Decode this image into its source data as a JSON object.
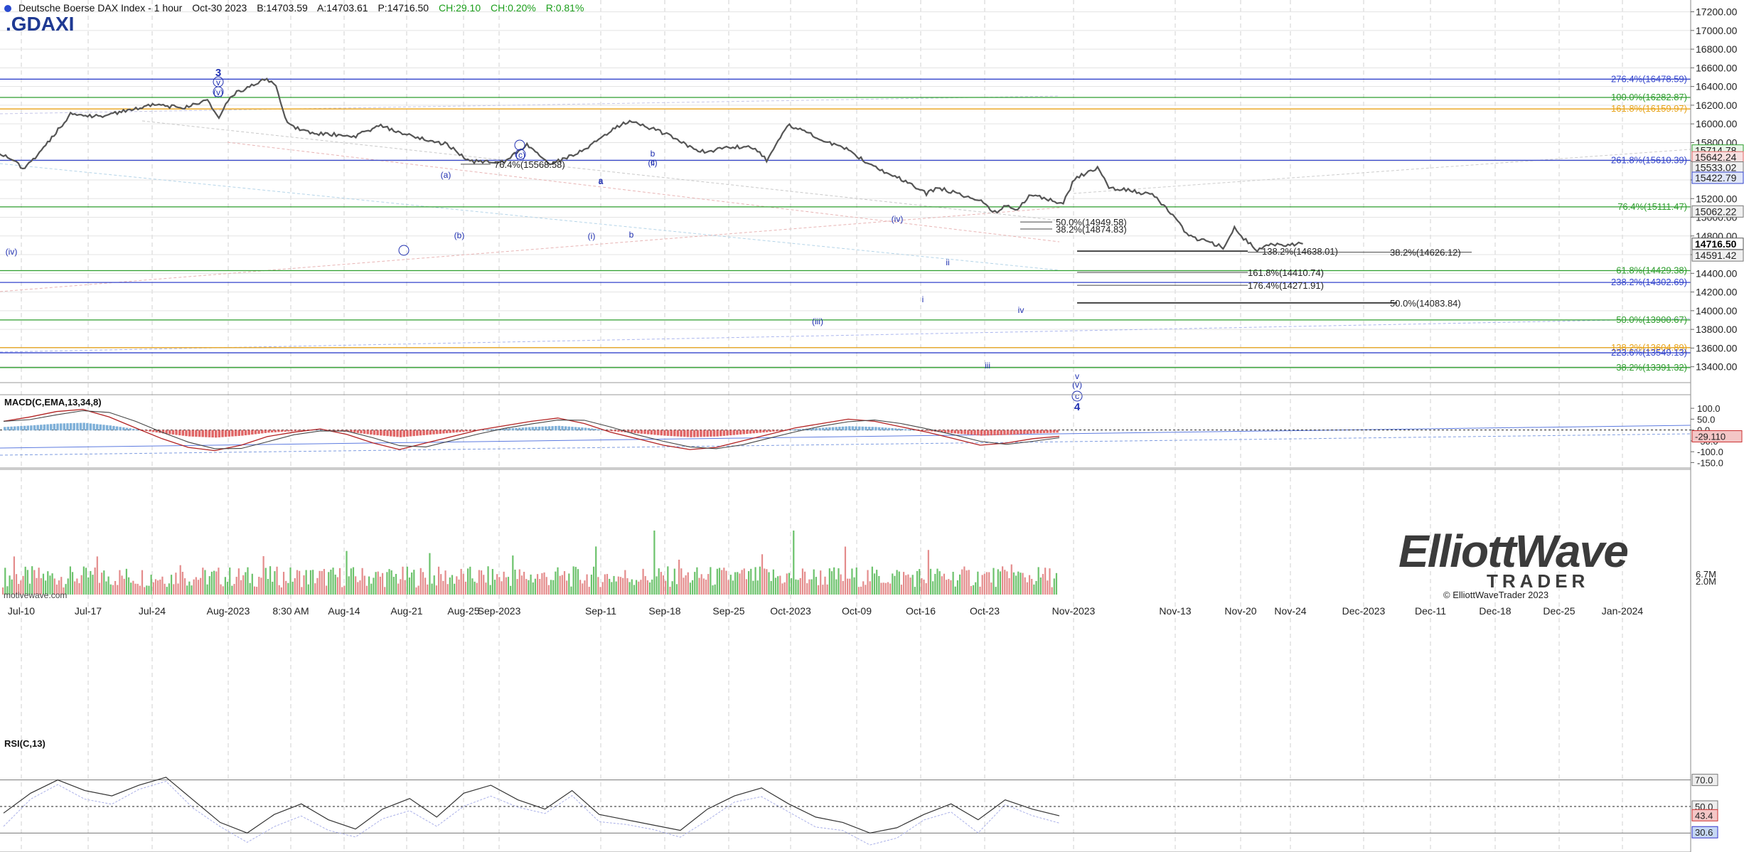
{
  "header": {
    "title": "Deutsche Boerse DAX Index - 1 hour",
    "date": "Oct-30 2023",
    "bid": "B:14703.59",
    "ask": "A:14703.61",
    "last": "P:14716.50",
    "change": "CH:29.10",
    "change_pct": "CH:0.20%",
    "range": "R:0.81%"
  },
  "ticker": ".GDAXI",
  "watermark": "motivewave.com",
  "logo": {
    "line1": "ElliottWave",
    "line2": "TRADER"
  },
  "copyright": "© ElliottWaveTrader 2023",
  "colors": {
    "price": "#555555",
    "blue_level": "#3344cc",
    "green_level": "#2e9e2e",
    "orange_level": "#e8a317",
    "volume_up": "#6cc26c",
    "volume_down": "#e48c8c",
    "macd_line": "#b22222",
    "macd_signal": "#444444",
    "macd_hist_up": "#7fb0d8",
    "macd_hist_down": "#e06666",
    "rsi_line": "#333333"
  },
  "chart_data": [
    {
      "type": "line",
      "panel": "price",
      "x_tick_labels": [
        "Jul-10",
        "Jul-17",
        "Jul-24",
        "Aug-2023",
        "8:30 AM",
        "Aug-14",
        "Aug-21",
        "Aug-25",
        "Sep-2023",
        "Sep-11",
        "Sep-18",
        "Sep-25",
        "Oct-2023",
        "Oct-09",
        "Oct-16",
        "Oct-23",
        "Nov-2023",
        "Nov-13",
        "Nov-20",
        "Nov-24",
        "Dec-2023",
        "Dec-11",
        "Dec-18",
        "Dec-25",
        "Jan-2024"
      ],
      "y_ticks": [
        13400,
        13600,
        13800,
        14000,
        14200,
        14400,
        14600,
        14800,
        15000,
        15200,
        15400,
        15600,
        15800,
        16000,
        16200,
        16400,
        16600,
        16800,
        17000,
        17200
      ],
      "ylim": [
        13230,
        17250
      ],
      "series": [
        {
          "name": "",
          "points": [
            [
              "Jul-07",
              15750
            ],
            [
              "Jul-10",
              15520
            ],
            [
              "Jul-12",
              15800
            ],
            [
              "Jul-14",
              16100
            ],
            [
              "Jul-17",
              16080
            ],
            [
              "Jul-19",
              16150
            ],
            [
              "Jul-21",
              16200
            ],
            [
              "Jul-24",
              16180
            ],
            [
              "Jul-26",
              16250
            ],
            [
              "Jul-27",
              16050
            ],
            [
              "Jul-28",
              16300
            ],
            [
              "Jul-31",
              16478
            ],
            [
              "Aug-01",
              16420
            ],
            [
              "Aug-02",
              16000
            ],
            [
              "Aug-04",
              15900
            ],
            [
              "Aug-08",
              15870
            ],
            [
              "Aug-10",
              15980
            ],
            [
              "Aug-14",
              15840
            ],
            [
              "Aug-16",
              15780
            ],
            [
              "Aug-18",
              15600
            ],
            [
              "Aug-21",
              15590
            ],
            [
              "Aug-23",
              15780
            ],
            [
              "Aug-25",
              15560
            ],
            [
              "Aug-28",
              15720
            ],
            [
              "Aug-30",
              15900
            ],
            [
              "Sep-01",
              16040
            ],
            [
              "Sep-05",
              15850
            ],
            [
              "Sep-07",
              15700
            ],
            [
              "Sep-11",
              15760
            ],
            [
              "Sep-12",
              15740
            ],
            [
              "Sep-13",
              15610
            ],
            [
              "Sep-14",
              15820
            ],
            [
              "Sep-15",
              15990
            ],
            [
              "Sep-18",
              15820
            ],
            [
              "Sep-20",
              15740
            ],
            [
              "Sep-22",
              15560
            ],
            [
              "Sep-25",
              15400
            ],
            [
              "Sep-27",
              15250
            ],
            [
              "Sep-28",
              15320
            ],
            [
              "Oct-02",
              15160
            ],
            [
              "Oct-03",
              15050
            ],
            [
              "Oct-04",
              15120
            ],
            [
              "Oct-05",
              15080
            ],
            [
              "Oct-06",
              15240
            ],
            [
              "Oct-09",
              15150
            ],
            [
              "Oct-10",
              15420
            ],
            [
              "Oct-11",
              15470
            ],
            [
              "Oct-12",
              15520
            ],
            [
              "Oct-13",
              15320
            ],
            [
              "Oct-16",
              15260
            ],
            [
              "Oct-17",
              15230
            ],
            [
              "Oct-18",
              15100
            ],
            [
              "Oct-19",
              14960
            ],
            [
              "Oct-20",
              14800
            ],
            [
              "Oct-23",
              14680
            ],
            [
              "Oct-24",
              14880
            ],
            [
              "Oct-25",
              14750
            ],
            [
              "Oct-26",
              14650
            ],
            [
              "Oct-27",
              14700
            ],
            [
              "Oct-30",
              14716
            ]
          ]
        }
      ],
      "horizontal_levels": [
        {
          "label": "276.4%(16478.59)",
          "value": 16478.59,
          "color": "blue"
        },
        {
          "label": "100.0%(16282.87)",
          "value": 16282.87,
          "color": "green"
        },
        {
          "label": "161.8%(16159.97)",
          "value": 16159.97,
          "color": "orange"
        },
        {
          "label": "261.8%(15610.39)",
          "value": 15610.39,
          "color": "blue"
        },
        {
          "label": "76.4%(15111.47)",
          "value": 15111.47,
          "color": "green"
        },
        {
          "label": "61.8%(14429.38)",
          "value": 14429.38,
          "color": "green"
        },
        {
          "label": "238.2%(14302.69)",
          "value": 14302.69,
          "color": "blue"
        },
        {
          "label": "50.0%(13900.67)",
          "value": 13900.67,
          "color": "green"
        },
        {
          "label": "138.2%(13604.89)",
          "value": 13604.89,
          "color": "orange"
        },
        {
          "label": "223.6%(13549.13)",
          "value": 13549.13,
          "color": "blue"
        },
        {
          "label": "38.2%(13391.32)",
          "value": 13391.32,
          "color": "green"
        }
      ],
      "projection_levels": [
        {
          "label": "138.2%(14638.01)",
          "value": 14638.01
        },
        {
          "label": "38.2%(14626.12)",
          "value": 14626.12
        },
        {
          "label": "161.8%(14410.74)",
          "value": 14410.74
        },
        {
          "label": "176.4%(14271.91)",
          "value": 14271.91
        },
        {
          "label": "50.0%(14083.84)",
          "value": 14083.84
        },
        {
          "label": "50.0%(14949.58)",
          "value": 14949.58
        },
        {
          "label": "38.2%(14874.83)",
          "value": 14874.83
        },
        {
          "label": "76.4%(15568.58)",
          "value": 15568.58
        }
      ],
      "price_tags": [
        "15714.78",
        "15642.24",
        "15533.02",
        "15422.79",
        "15062.22",
        "14716.50",
        "14591.42"
      ],
      "wave_labels": [
        "3",
        "v",
        "(v)",
        "(iv)",
        "a",
        "(a)",
        "(b)",
        "b",
        "(c)",
        "(i)",
        "a",
        "b",
        "(ii)",
        "c",
        "(iii)",
        "(iv)",
        "i",
        "ii",
        "iii",
        "iv",
        "v",
        "(v)",
        "c",
        "4"
      ]
    },
    {
      "type": "line",
      "panel": "volume",
      "y_ticks": [
        "6.7M",
        "2.0M"
      ]
    },
    {
      "type": "line",
      "panel": "MACD",
      "title": "MACD(C,EMA,13,34,8)",
      "y_ticks": [
        100.0,
        50.0,
        0.0,
        -50.0,
        -100.0,
        -150.0
      ],
      "ylim": [
        -165,
        120
      ],
      "last_value": "-29.110",
      "series": [
        {
          "name": "",
          "values": [
            40,
            60,
            85,
            95,
            60,
            10,
            -40,
            -80,
            -95,
            -70,
            -30,
            -10,
            5,
            -20,
            -60,
            -90,
            -60,
            -30,
            0,
            20,
            40,
            55,
            30,
            -10,
            -40,
            -70,
            -90,
            -80,
            -50,
            -20,
            10,
            30,
            50,
            40,
            15,
            -10,
            -40,
            -70,
            -60,
            -40,
            -29
          ]
        }
      ]
    },
    {
      "type": "line",
      "panel": "RSI",
      "title": "RSI(C,13)",
      "y_ticks": [
        70.0,
        50.0
      ],
      "ylim": [
        20,
        95
      ],
      "last_values": [
        "43.4",
        "30.6"
      ],
      "series": [
        {
          "name": "",
          "values": [
            45,
            60,
            70,
            62,
            58,
            66,
            72,
            55,
            38,
            30,
            44,
            52,
            40,
            33,
            48,
            56,
            42,
            60,
            66,
            55,
            48,
            62,
            44,
            40,
            36,
            32,
            48,
            58,
            64,
            52,
            42,
            38,
            30,
            34,
            44,
            52,
            40,
            55,
            48,
            43
          ]
        }
      ]
    }
  ]
}
